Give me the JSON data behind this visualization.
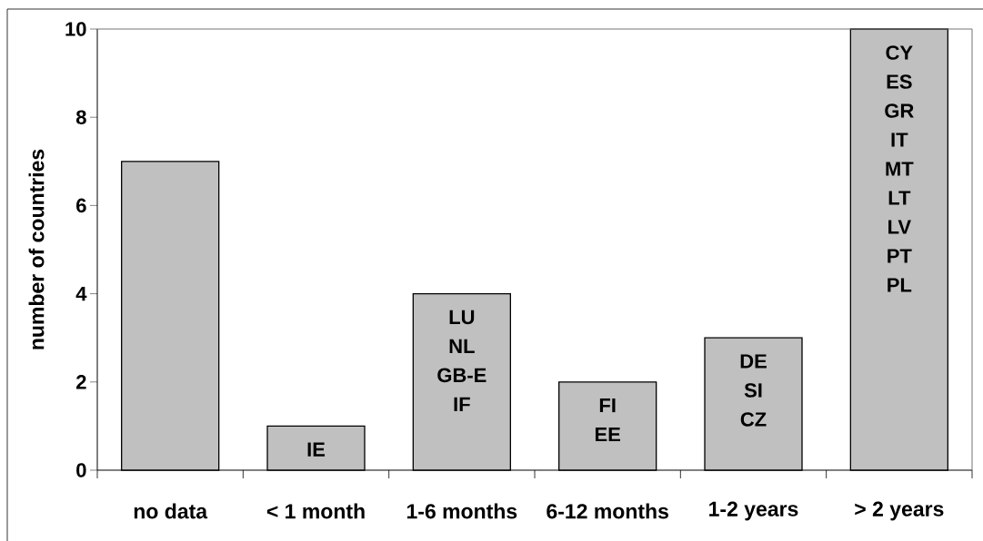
{
  "chart_data": {
    "type": "bar",
    "ylabel": "number of countries",
    "categories": [
      "no data",
      "< 1 month",
      "1-6 months",
      "6-12 months",
      "1-2 years",
      "> 2 years"
    ],
    "values": [
      7,
      1,
      4,
      2,
      3,
      10
    ],
    "color": "#c0c0c0",
    "ylim": [
      0,
      10
    ],
    "yticks": [
      0,
      2,
      4,
      6,
      8,
      10
    ],
    "value_labels": [
      null,
      "IE",
      "LU NL GB-E IF",
      "FI EE",
      "DE SI CZ",
      "CY ES GR IT MT LT LV PT PL"
    ]
  }
}
